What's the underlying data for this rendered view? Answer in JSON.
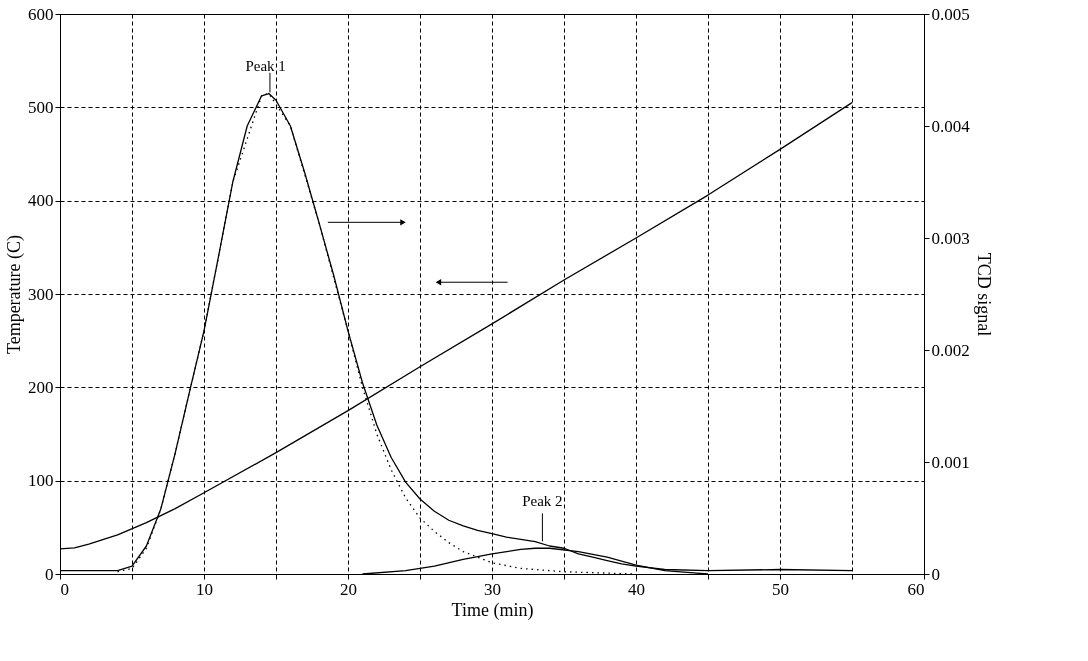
{
  "chart_data": {
    "type": "line",
    "xlabel": "Time (min)",
    "ylabel": "Temperature (C)",
    "y2label": "TCD signal",
    "xlim": [
      0,
      60
    ],
    "xticks": [
      0,
      {
        "value": 5,
        "label": null
      },
      10,
      {
        "value": 15,
        "label": null
      },
      20,
      {
        "value": 25,
        "label": null
      },
      30,
      {
        "value": 35,
        "label": null
      },
      40,
      {
        "value": 45,
        "label": null
      },
      50,
      {
        "value": 55,
        "label": null
      },
      60
    ],
    "ylim": [
      0,
      600
    ],
    "yticks": [
      0,
      100,
      200,
      300,
      400,
      500,
      600
    ],
    "y2lim": [
      0,
      0.005
    ],
    "y2ticks": [
      0,
      0.001,
      0.002,
      0.003,
      0.004,
      0.005
    ],
    "grid": true,
    "series": [
      {
        "color": "#000000",
        "line_style": "solid",
        "x": [
          0,
          1,
          2,
          4,
          6,
          8,
          10,
          15,
          20,
          25,
          30,
          35,
          40,
          45,
          50,
          55
        ],
        "values": [
          27,
          28,
          32,
          42,
          55,
          70,
          87,
          130,
          175,
          222,
          268,
          315,
          360,
          406,
          455,
          505
        ]
      },
      {
        "color": "#000000",
        "line_style": "solid",
        "axis": "y2",
        "x": [
          0,
          2,
          4,
          5,
          6,
          7,
          8,
          9,
          10,
          11,
          12,
          13,
          14,
          14.5,
          15,
          16,
          17,
          18,
          19,
          20,
          21,
          22,
          23,
          24,
          25,
          26,
          27,
          28,
          29,
          30,
          31,
          32,
          33,
          34,
          35,
          36,
          37,
          38,
          39,
          40,
          42,
          45,
          50,
          55
        ],
        "values": [
          3e-05,
          3e-05,
          3e-05,
          7e-05,
          0.00025,
          0.00058,
          0.00108,
          0.00163,
          0.00217,
          0.00283,
          0.0035,
          0.004,
          0.00427,
          0.00429,
          0.00423,
          0.004,
          0.00358,
          0.00313,
          0.00267,
          0.00217,
          0.00171,
          0.00133,
          0.00104,
          0.00082,
          0.00067,
          0.00056,
          0.00048,
          0.00043,
          0.00039,
          0.00036,
          0.00033,
          0.00031,
          0.00029,
          0.00025,
          0.00023,
          0.00018,
          0.00015,
          0.00012,
          9e-05,
          7e-05,
          4e-05,
          3e-05,
          4e-05,
          3e-05
        ]
      },
      {
        "color": "#000000",
        "line_style": "dotted",
        "axis": "y2",
        "x": [
          4,
          5,
          6,
          7,
          8,
          9,
          10,
          12,
          14,
          14.5,
          16,
          18,
          20,
          21,
          22,
          23,
          24,
          25,
          26,
          27,
          28,
          30,
          32,
          35,
          40
        ],
        "values": [
          2e-05,
          5e-05,
          0.00023,
          0.00058,
          0.00108,
          0.00163,
          0.00217,
          0.0035,
          0.00427,
          0.00429,
          0.004,
          0.00313,
          0.00217,
          0.00167,
          0.00125,
          0.00093,
          0.00068,
          0.0005,
          0.00038,
          0.00028,
          0.0002,
          0.0001,
          5e-05,
          2e-05,
          0
        ]
      },
      {
        "color": "#000000",
        "line_style": "solid",
        "axis": "y2",
        "x": [
          21,
          24,
          26,
          28,
          30,
          32,
          33,
          34,
          36,
          38,
          40,
          42,
          44,
          45
        ],
        "values": [
          0,
          3e-05,
          7e-05,
          0.00013,
          0.00018,
          0.00022,
          0.00023,
          0.00023,
          0.0002,
          0.00015,
          8e-05,
          3e-05,
          1e-05,
          0
        ]
      }
    ],
    "annotations": [
      "Peak 1",
      {
        "text": "Peak 2",
        "x": 33.5,
        "y": 35
      }
    ]
  }
}
